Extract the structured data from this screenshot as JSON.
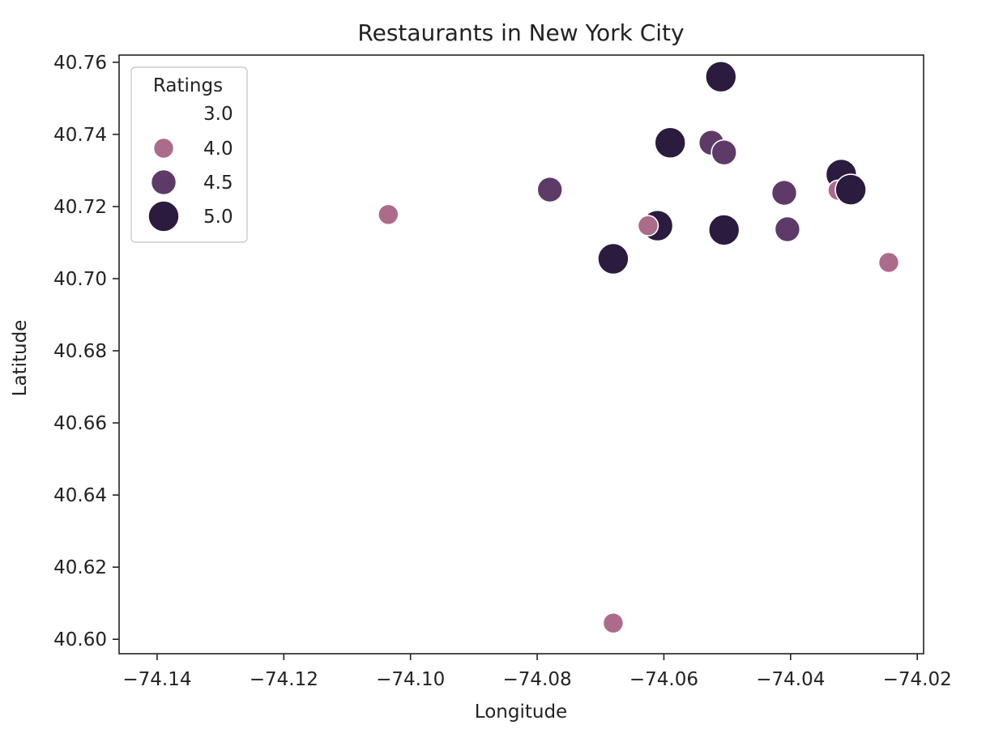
{
  "chart_data": {
    "type": "scatter",
    "title": "Restaurants in New York City",
    "xlabel": "Longitude",
    "ylabel": "Latitude",
    "xlim": [
      -74.146,
      -74.019
    ],
    "ylim": [
      40.596,
      40.762
    ],
    "x_ticks": [
      {
        "value": -74.14,
        "label": "−74.14"
      },
      {
        "value": -74.12,
        "label": "−74.12"
      },
      {
        "value": -74.1,
        "label": "−74.10"
      },
      {
        "value": -74.08,
        "label": "−74.08"
      },
      {
        "value": -74.06,
        "label": "−74.06"
      },
      {
        "value": -74.04,
        "label": "−74.04"
      },
      {
        "value": -74.02,
        "label": "−74.02"
      }
    ],
    "y_ticks": [
      {
        "value": 40.6,
        "label": "40.60"
      },
      {
        "value": 40.62,
        "label": "40.62"
      },
      {
        "value": 40.64,
        "label": "40.64"
      },
      {
        "value": 40.66,
        "label": "40.66"
      },
      {
        "value": 40.68,
        "label": "40.68"
      },
      {
        "value": 40.7,
        "label": "40.70"
      },
      {
        "value": 40.72,
        "label": "40.72"
      },
      {
        "value": 40.74,
        "label": "40.74"
      },
      {
        "value": 40.76,
        "label": "40.76"
      }
    ],
    "grid": false,
    "legend": {
      "title": "Ratings",
      "placement": "upper-left",
      "entries": [
        {
          "label": "3.0",
          "rating": 3.0,
          "color": "#e8c9d1",
          "show_marker": false
        },
        {
          "label": "4.0",
          "rating": 4.0,
          "color": "#ad6b8c"
        },
        {
          "label": "4.5",
          "rating": 4.5,
          "color": "#5e3a68"
        },
        {
          "label": "5.0",
          "rating": 5.0,
          "color": "#2a1b3f"
        }
      ]
    },
    "points": [
      {
        "x": -74.051,
        "y": 40.756,
        "rating": 5.0
      },
      {
        "x": -74.059,
        "y": 40.7377,
        "rating": 5.0
      },
      {
        "x": -74.0525,
        "y": 40.7377,
        "rating": 4.5
      },
      {
        "x": -74.0505,
        "y": 40.735,
        "rating": 4.5
      },
      {
        "x": -74.078,
        "y": 40.7247,
        "rating": 4.5
      },
      {
        "x": -74.1035,
        "y": 40.7178,
        "rating": 4.0
      },
      {
        "x": -74.061,
        "y": 40.7147,
        "rating": 5.0
      },
      {
        "x": -74.0625,
        "y": 40.7147,
        "rating": 4.0
      },
      {
        "x": -74.0505,
        "y": 40.7135,
        "rating": 5.0
      },
      {
        "x": -74.041,
        "y": 40.7238,
        "rating": 4.5
      },
      {
        "x": -74.0405,
        "y": 40.7137,
        "rating": 4.5
      },
      {
        "x": -74.032,
        "y": 40.7289,
        "rating": 5.0
      },
      {
        "x": -74.0325,
        "y": 40.7245,
        "rating": 4.0
      },
      {
        "x": -74.0305,
        "y": 40.7247,
        "rating": 5.0
      },
      {
        "x": -74.068,
        "y": 40.7055,
        "rating": 5.0
      },
      {
        "x": -74.0245,
        "y": 40.7045,
        "rating": 4.0
      },
      {
        "x": -74.068,
        "y": 40.6045,
        "rating": 4.0
      }
    ]
  }
}
